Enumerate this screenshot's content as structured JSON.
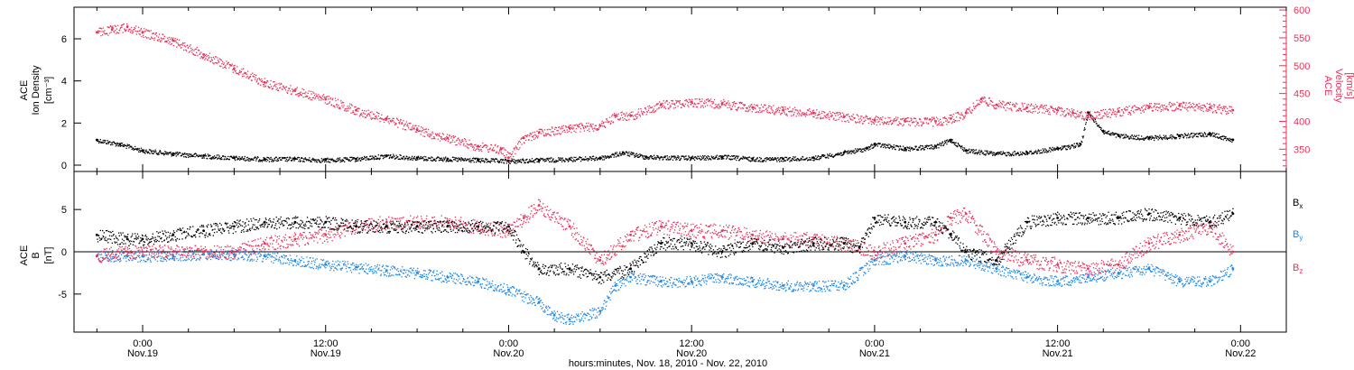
{
  "chart_data": [
    {
      "type": "scatter",
      "panel": "plasma",
      "ylabel_left": [
        "ACE",
        "Ion Density",
        "[cm⁻³]"
      ],
      "ylabel_right": [
        "ACE",
        "Velocity",
        "[km/s]"
      ],
      "yticks_left": [
        "0",
        "2",
        "4",
        "6"
      ],
      "yticks_right": [
        "350",
        "400",
        "450",
        "500",
        "550",
        "600"
      ],
      "ylim_left": [
        -0.3,
        7.5
      ],
      "ylim_right": [
        310,
        605
      ],
      "grid": false,
      "colors": {
        "density": "#000000",
        "velocity": "#e8325a"
      },
      "series": [
        {
          "axis": "left",
          "x_hours": [
            -3,
            -1.5,
            0,
            2,
            4,
            6,
            8,
            10,
            12,
            14,
            16,
            18,
            20,
            22,
            24,
            26,
            28,
            30,
            31.5,
            33,
            36,
            38,
            40,
            42,
            44,
            46,
            47.5,
            48,
            50,
            52,
            53,
            54,
            56,
            58,
            60,
            61.5,
            62,
            63,
            64,
            66,
            68,
            70,
            71.5
          ],
          "values": [
            1.2,
            1.0,
            0.7,
            0.55,
            0.45,
            0.35,
            0.3,
            0.3,
            0.25,
            0.3,
            0.45,
            0.35,
            0.3,
            0.25,
            0.2,
            0.25,
            0.3,
            0.35,
            0.6,
            0.4,
            0.35,
            0.4,
            0.3,
            0.3,
            0.35,
            0.6,
            0.8,
            1.0,
            0.8,
            0.9,
            1.2,
            0.7,
            0.55,
            0.6,
            0.8,
            1.0,
            2.5,
            1.6,
            1.4,
            1.3,
            1.4,
            1.5,
            1.2
          ]
        },
        {
          "axis": "right",
          "x_hours": [
            -3,
            -2,
            -1,
            0,
            2,
            4,
            6,
            8,
            10,
            12,
            14,
            16,
            18,
            20,
            22,
            23.5,
            24,
            25,
            26,
            28,
            30,
            31,
            32,
            34,
            36,
            38,
            40,
            42,
            44,
            46,
            48,
            50,
            52,
            53,
            54,
            55,
            56,
            58,
            60,
            61,
            62,
            64,
            66,
            68,
            70,
            71.5
          ],
          "values": [
            560,
            565,
            570,
            560,
            545,
            520,
            495,
            470,
            455,
            440,
            420,
            405,
            385,
            370,
            355,
            350,
            335,
            370,
            380,
            388,
            392,
            410,
            410,
            430,
            435,
            432,
            425,
            420,
            415,
            408,
            402,
            400,
            400,
            405,
            415,
            440,
            430,
            425,
            420,
            415,
            410,
            418,
            425,
            428,
            425,
            420
          ]
        }
      ]
    },
    {
      "type": "scatter",
      "panel": "magnetic field",
      "ylabel_left": [
        "ACE",
        "B",
        "[nT]"
      ],
      "yticks_left": [
        "-5",
        "0",
        "5"
      ],
      "ylim_left": [
        -9.5,
        9.5
      ],
      "grid": false,
      "colors": {
        "Bx": "#000000",
        "By": "#1e88e5",
        "Bz": "#e8325a"
      },
      "series": [
        {
          "name": "Bx",
          "x_hours": [
            -3,
            -1,
            0,
            2,
            4,
            6,
            8,
            10,
            12,
            14,
            16,
            18,
            20,
            22,
            24,
            25,
            26,
            28,
            30,
            32,
            34,
            36,
            38,
            40,
            42,
            44,
            46,
            47,
            48,
            50,
            52,
            53,
            54,
            56,
            58,
            60,
            62,
            64,
            66,
            68,
            70,
            71.5
          ],
          "values": [
            2,
            1.5,
            1.5,
            2,
            2.5,
            3,
            3.5,
            3.5,
            3.5,
            3,
            3,
            3,
            3,
            3,
            3,
            0,
            -2,
            -2,
            -3,
            -2,
            1,
            1,
            0,
            1,
            0.5,
            1,
            1,
            0.5,
            4,
            3.5,
            3.5,
            2,
            0,
            -1,
            3.5,
            4,
            4,
            4,
            4.5,
            4,
            3.5,
            4.5
          ]
        },
        {
          "name": "By",
          "x_hours": [
            -3,
            -1,
            0,
            2,
            4,
            6,
            8,
            10,
            12,
            14,
            16,
            18,
            20,
            22,
            24,
            26,
            27,
            28,
            30,
            31,
            32,
            34,
            36,
            38,
            40,
            42,
            44,
            46,
            48,
            50,
            52,
            54,
            56,
            58,
            60,
            62,
            64,
            66,
            68,
            70,
            71.5
          ],
          "values": [
            -0.5,
            -0.5,
            -0.5,
            -0.5,
            -0.3,
            -0.3,
            -0.5,
            -1,
            -1.5,
            -1.8,
            -2.2,
            -2.5,
            -3,
            -3.5,
            -4.5,
            -6,
            -7.5,
            -8,
            -7,
            -4,
            -3,
            -3.5,
            -3.5,
            -3,
            -3.5,
            -4,
            -4,
            -4,
            -1,
            -0.5,
            -1,
            -1,
            -2,
            -3,
            -3.5,
            -3,
            -2.5,
            -2,
            -3.5,
            -3.5,
            -2
          ]
        },
        {
          "name": "Bz",
          "x_hours": [
            -3,
            -1,
            0,
            2,
            4,
            6,
            8,
            10,
            12,
            14,
            16,
            18,
            20,
            22,
            24,
            25,
            26,
            28,
            30,
            32,
            34,
            36,
            38,
            40,
            42,
            44,
            46,
            47,
            48,
            50,
            52,
            53,
            54,
            56,
            58,
            60,
            62,
            64,
            66,
            68,
            70,
            71.5
          ],
          "values": [
            -0.5,
            0,
            0,
            0,
            0,
            0,
            1,
            1.5,
            2,
            3,
            3.5,
            3.5,
            3.5,
            3,
            2.5,
            4,
            5.5,
            3,
            -1,
            2,
            3,
            2.5,
            2.5,
            2,
            1.5,
            1.5,
            1,
            0.5,
            0,
            1,
            2,
            4,
            4.5,
            0,
            -1,
            -1.5,
            -2,
            -1.5,
            1,
            2,
            3,
            0
          ]
        }
      ],
      "legend": [
        {
          "label": "B",
          "sub": "x",
          "color": "#000000"
        },
        {
          "label": "B",
          "sub": "y",
          "color": "#1e88e5"
        },
        {
          "label": "B",
          "sub": "z",
          "color": "#e8325a"
        }
      ]
    }
  ],
  "x_axis": {
    "xlim_hours": [
      -4.5,
      75
    ],
    "ticks": [
      {
        "h": 0,
        "time": "0:00",
        "date": "Nov.19"
      },
      {
        "h": 12,
        "time": "12:00",
        "date": "Nov.19"
      },
      {
        "h": 24,
        "time": "0:00",
        "date": "Nov.20"
      },
      {
        "h": 36,
        "time": "12:00",
        "date": "Nov.20"
      },
      {
        "h": 48,
        "time": "0:00",
        "date": "Nov.21"
      },
      {
        "h": 60,
        "time": "12:00",
        "date": "Nov.21"
      },
      {
        "h": 72,
        "time": "0:00",
        "date": "Nov.22"
      }
    ],
    "label": "hours:minutes, Nov. 18, 2010 - Nov. 22, 2010"
  }
}
